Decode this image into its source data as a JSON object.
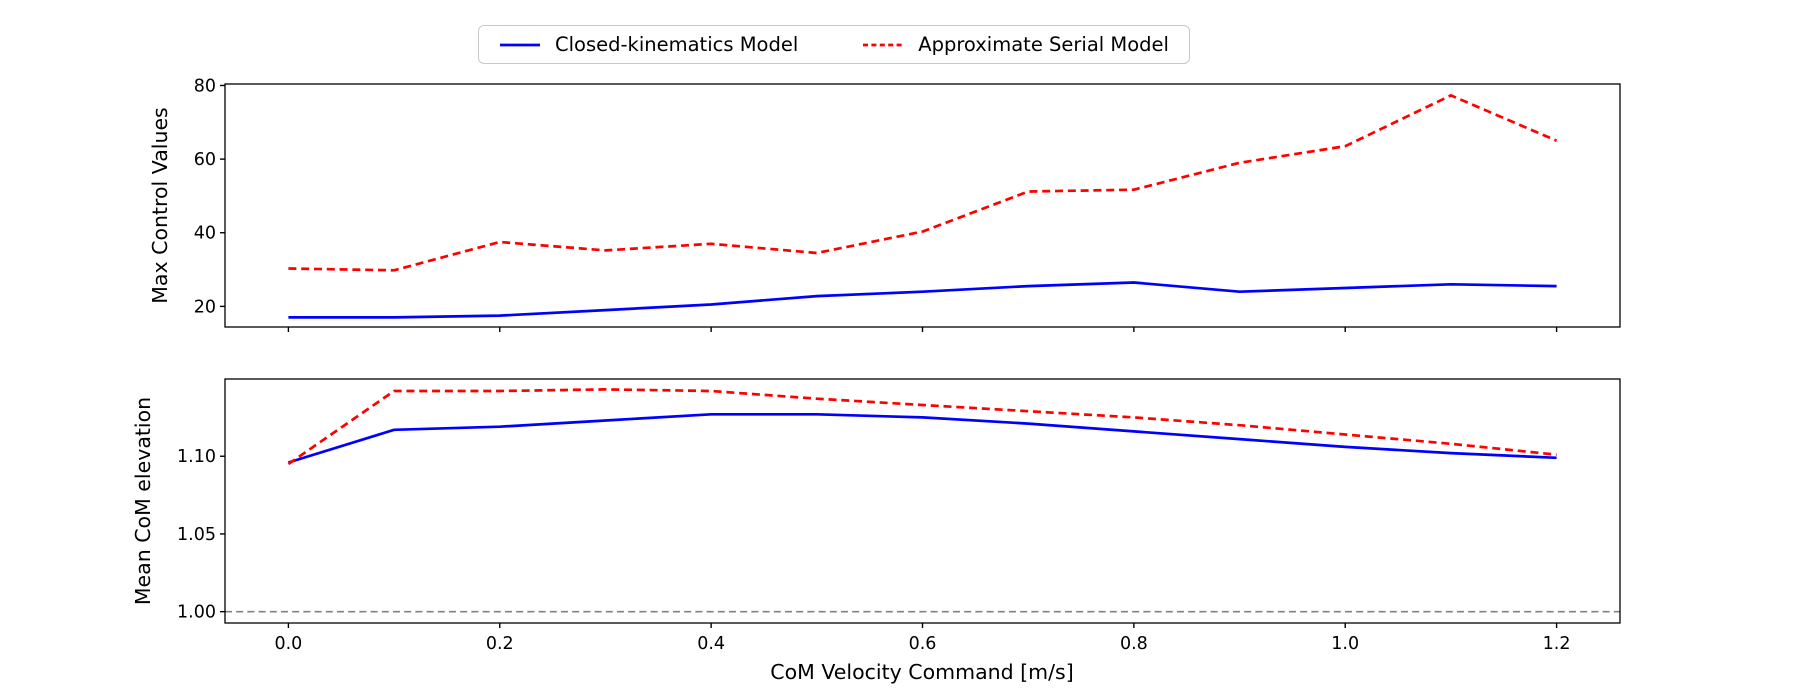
{
  "figure": {
    "background": "#ffffff"
  },
  "legend": {
    "items": [
      {
        "id": "closed-kinematics",
        "label": "Closed-kinematics Model",
        "color": "#0000ff",
        "line_style": "solid"
      },
      {
        "id": "approximate-serial",
        "label": "Approximate Serial Model",
        "color": "#ff0000",
        "line_style": "dashed"
      }
    ]
  },
  "chart_data": [
    {
      "type": "line",
      "name": "max-control-values",
      "title": "",
      "xlabel": "",
      "ylabel": "Max Control Values",
      "grid": false,
      "legend_position": "figure-top-center",
      "x": [
        0.0,
        0.1,
        0.2,
        0.3,
        0.4,
        0.5,
        0.6,
        0.7,
        0.8,
        0.9,
        1.0,
        1.1,
        1.2
      ],
      "series": [
        {
          "id": "closed-kinematics",
          "name": "Closed-kinematics Model",
          "color": "#0000ff",
          "line_style": "solid",
          "values": [
            17.0,
            17.0,
            17.5,
            19.0,
            20.5,
            22.8,
            24.0,
            25.5,
            26.5,
            24.0,
            25.0,
            26.0,
            25.5
          ]
        },
        {
          "id": "approximate-serial",
          "name": "Approximate Serial Model",
          "color": "#ff0000",
          "line_style": "dashed",
          "values": [
            30.3,
            29.8,
            37.5,
            35.2,
            37.0,
            34.5,
            40.3,
            51.2,
            51.7,
            59.0,
            63.5,
            77.3,
            65.0
          ]
        }
      ],
      "xlim": [
        -0.06,
        1.26
      ],
      "ylim": [
        14.4,
        80.4
      ],
      "xticks": {
        "values": [
          0.0,
          0.2,
          0.4,
          0.6,
          0.8,
          1.0,
          1.2
        ],
        "labels": []
      },
      "yticks": {
        "values": [
          20,
          40,
          60,
          80
        ],
        "labels": [
          "20",
          "40",
          "60",
          "80"
        ]
      }
    },
    {
      "type": "line",
      "name": "mean-com-elevation",
      "title": "",
      "xlabel": "CoM Velocity Command [m/s]",
      "ylabel": "Mean CoM elevation",
      "grid": false,
      "x": [
        0.0,
        0.1,
        0.2,
        0.3,
        0.4,
        0.5,
        0.6,
        0.7,
        0.8,
        0.9,
        1.0,
        1.1,
        1.2
      ],
      "series": [
        {
          "id": "closed-kinematics",
          "name": "Closed-kinematics Model",
          "color": "#0000ff",
          "line_style": "solid",
          "values": [
            1.096,
            1.117,
            1.119,
            1.123,
            1.127,
            1.127,
            1.125,
            1.121,
            1.116,
            1.111,
            1.106,
            1.102,
            1.099
          ]
        },
        {
          "id": "approximate-serial",
          "name": "Approximate Serial Model",
          "color": "#ff0000",
          "line_style": "dashed",
          "values": [
            1.095,
            1.142,
            1.142,
            1.143,
            1.142,
            1.137,
            1.133,
            1.129,
            1.125,
            1.12,
            1.114,
            1.108,
            1.101
          ]
        }
      ],
      "hline": {
        "y": 1.0,
        "color": "#808080",
        "style": "dashed"
      },
      "xlim": [
        -0.06,
        1.26
      ],
      "ylim": [
        0.9927,
        1.1497
      ],
      "xticks": {
        "values": [
          0.0,
          0.2,
          0.4,
          0.6,
          0.8,
          1.0,
          1.2
        ],
        "labels": [
          "0.0",
          "0.2",
          "0.4",
          "0.6",
          "0.8",
          "1.0",
          "1.2"
        ]
      },
      "yticks": {
        "values": [
          1.0,
          1.05,
          1.1
        ],
        "labels": [
          "1.00",
          "1.05",
          "1.10"
        ]
      }
    }
  ]
}
